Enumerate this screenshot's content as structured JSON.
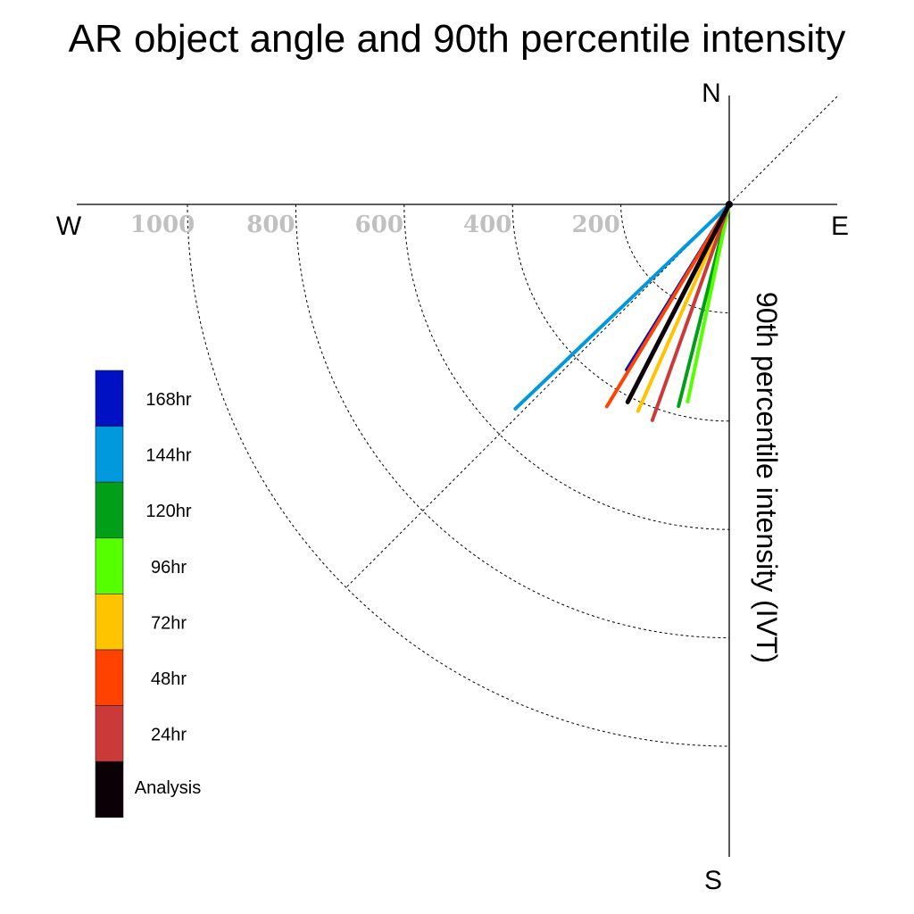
{
  "chart_data": {
    "type": "polar-vector",
    "title": "AR object angle and 90th percentile intensity",
    "radial_label": "90th percentile intensity (IVT)",
    "compass": {
      "north": "N",
      "south": "S",
      "east": "E",
      "west": "W"
    },
    "radial_ticks": [
      200,
      400,
      600,
      800,
      1000
    ],
    "radial_tick_labels": [
      "200",
      "400",
      "600",
      "800",
      "1000"
    ],
    "radial_max": 1000,
    "grid": true,
    "legend_placement": "left",
    "series": [
      {
        "name": "168hr",
        "color": "#0011c4",
        "angle_deg": 211.8,
        "intensity": 359
      },
      {
        "name": "144hr",
        "color": "#0099de",
        "angle_deg": 226.3,
        "intensity": 546
      },
      {
        "name": "120hr",
        "color": "#009f17",
        "angle_deg": 194.1,
        "intensity": 384
      },
      {
        "name": "96hr",
        "color": "#55ff00",
        "angle_deg": 191.9,
        "intensity": 372
      },
      {
        "name": "72hr",
        "color": "#ffc400",
        "angle_deg": 203.8,
        "intensity": 417
      },
      {
        "name": "48hr",
        "color": "#ff4200",
        "angle_deg": 211.2,
        "intensity": 436
      },
      {
        "name": "24hr",
        "color": "#cc3939",
        "angle_deg": 199.6,
        "intensity": 423
      },
      {
        "name": "Analysis",
        "color": "#0a0006",
        "angle_deg": 207.2,
        "intensity": 410
      }
    ]
  }
}
